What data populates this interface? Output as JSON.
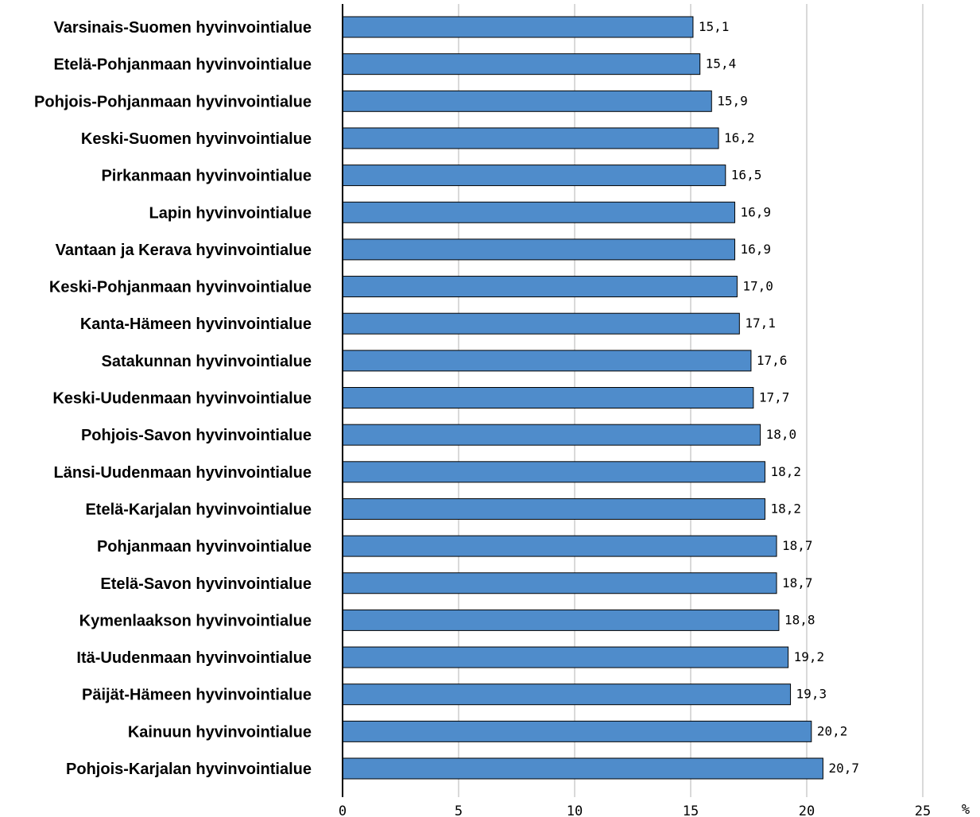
{
  "chart_data": {
    "type": "bar",
    "orientation": "horizontal",
    "title": "",
    "xlabel": "",
    "ylabel": "",
    "unit": "%",
    "xlim": [
      0,
      25
    ],
    "ticks": [
      0,
      5,
      10,
      15,
      20,
      25
    ],
    "tick_labels": [
      "0",
      "5",
      "10",
      "15",
      "20",
      "25"
    ],
    "grid": true,
    "bar_color": "#4f8ccb",
    "categories": [
      "Varsinais-Suomen hyvinvointialue",
      "Etelä-Pohjanmaan hyvinvointialue",
      "Pohjois-Pohjanmaan hyvinvointialue",
      "Keski-Suomen hyvinvointialue",
      "Pirkanmaan hyvinvointialue",
      "Lapin hyvinvointialue",
      "Vantaan ja Kerava hyvinvointialue",
      "Keski-Pohjanmaan hyvinvointialue",
      "Kanta-Hämeen hyvinvointialue",
      "Satakunnan hyvinvointialue",
      "Keski-Uudenmaan hyvinvointialue",
      "Pohjois-Savon hyvinvointialue",
      "Länsi-Uudenmaan hyvinvointialue",
      "Etelä-Karjalan hyvinvointialue",
      "Pohjanmaan hyvinvointialue",
      "Etelä-Savon hyvinvointialue",
      "Kymenlaakson hyvinvointialue",
      "Itä-Uudenmaan hyvinvointialue",
      "Päijät-Hämeen hyvinvointialue",
      "Kainuun hyvinvointialue",
      "Pohjois-Karjalan hyvinvointialue"
    ],
    "values": [
      15.1,
      15.4,
      15.9,
      16.2,
      16.5,
      16.9,
      16.9,
      17.0,
      17.1,
      17.6,
      17.7,
      18.0,
      18.2,
      18.2,
      18.7,
      18.7,
      18.8,
      19.2,
      19.3,
      20.2,
      20.7
    ],
    "value_labels": [
      "15,1",
      "15,4",
      "15,9",
      "16,2",
      "16,5",
      "16,9",
      "16,9",
      "17,0",
      "17,1",
      "17,6",
      "17,7",
      "18,0",
      "18,2",
      "18,2",
      "18,7",
      "18,7",
      "18,8",
      "19,2",
      "19,3",
      "20,2",
      "20,7"
    ]
  }
}
